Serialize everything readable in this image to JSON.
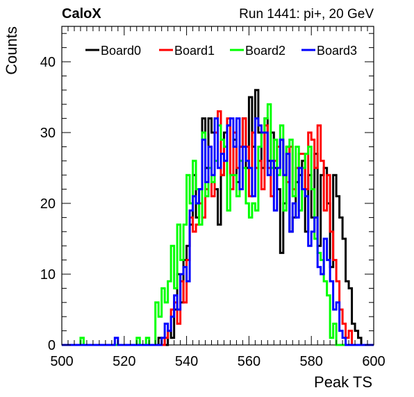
{
  "header": {
    "experiment": "CaloX",
    "run_info": "Run 1441: pi+, 20 GeV"
  },
  "chart_data": {
    "type": "histogram-step",
    "title": "",
    "xlabel": "Peak TS",
    "ylabel": "Counts",
    "xlim": [
      500,
      600
    ],
    "ylim": [
      0,
      45
    ],
    "x_ticks": [
      500,
      520,
      540,
      560,
      580,
      600
    ],
    "y_ticks": [
      0,
      10,
      20,
      30,
      40
    ],
    "bin_width": 1,
    "x_start": 500,
    "legend_placement": "top",
    "grid": false,
    "series": [
      {
        "name": "Board0",
        "color": "#000000",
        "values": [
          0,
          0,
          0,
          0,
          0,
          0,
          0,
          0,
          0,
          0,
          0,
          0,
          0,
          0,
          0,
          0,
          0,
          0,
          0,
          0,
          0,
          0,
          0,
          0,
          0,
          0,
          0,
          0,
          0,
          0,
          0,
          1,
          0,
          0,
          2,
          1,
          5,
          10,
          6,
          12,
          14,
          17,
          24,
          18,
          22,
          32,
          25,
          32,
          30,
          22,
          17,
          24,
          30,
          31,
          24,
          29,
          23,
          28,
          32,
          25,
          35,
          28,
          36,
          30,
          25,
          32,
          26,
          30,
          25,
          22,
          13,
          20,
          28,
          16,
          18,
          23,
          24,
          26,
          16,
          24,
          18,
          27,
          14,
          24,
          25,
          20,
          11,
          24,
          21,
          18,
          15,
          9,
          8,
          3,
          2,
          1,
          0,
          0,
          0,
          0
        ]
      },
      {
        "name": "Board1",
        "color": "#ff0000",
        "values": [
          0,
          0,
          0,
          0,
          0,
          0,
          0,
          0,
          0,
          0,
          0,
          0,
          0,
          0,
          0,
          0,
          0,
          0,
          0,
          0,
          0,
          0,
          0,
          0,
          0,
          0,
          0,
          0,
          0,
          0,
          0,
          0,
          0,
          1,
          2,
          5,
          6,
          3,
          9,
          6,
          12,
          18,
          16,
          17,
          20,
          18,
          22,
          28,
          21,
          30,
          33,
          24,
          28,
          32,
          22,
          30,
          25,
          28,
          32,
          28,
          21,
          30,
          25,
          26,
          22,
          31,
          25,
          21,
          26,
          28,
          29,
          24,
          23,
          28,
          22,
          25,
          27,
          27,
          22,
          30,
          29,
          25,
          31,
          26,
          19,
          24,
          16,
          12,
          9,
          5,
          3,
          1,
          2,
          0,
          0,
          0,
          0,
          0,
          0,
          0
        ]
      },
      {
        "name": "Board2",
        "color": "#00ff00",
        "values": [
          0,
          0,
          0,
          0,
          0,
          0,
          1,
          0,
          0,
          0,
          0,
          0,
          0,
          0,
          0,
          0,
          0,
          0,
          0,
          0,
          0,
          0,
          0,
          0,
          1,
          0,
          0,
          1,
          0,
          0,
          6,
          4,
          8,
          6,
          9,
          14,
          8,
          17,
          12,
          17,
          24,
          20,
          26,
          22,
          17,
          30,
          21,
          25,
          23,
          26,
          31,
          29,
          28,
          19,
          24,
          24,
          21,
          26,
          25,
          20,
          18,
          20,
          19,
          28,
          30,
          32,
          34,
          25,
          29,
          24,
          31,
          19,
          28,
          29,
          21,
          28,
          19,
          25,
          27,
          28,
          22,
          15,
          13,
          12,
          9,
          7,
          1,
          3,
          0,
          0,
          0,
          0,
          0,
          0,
          0,
          0,
          0,
          0,
          0,
          0
        ]
      },
      {
        "name": "Board3",
        "color": "#0000ff",
        "values": [
          0,
          0,
          0,
          0,
          0,
          0,
          0,
          0,
          0,
          0,
          0,
          0,
          0,
          0,
          0,
          0,
          0,
          1,
          0,
          0,
          0,
          0,
          0,
          0,
          0,
          0,
          0,
          0,
          0,
          0,
          0,
          0,
          1,
          3,
          2,
          4,
          7,
          5,
          10,
          11,
          9,
          19,
          21,
          20,
          22,
          29,
          23,
          28,
          24,
          32,
          25,
          27,
          26,
          31,
          32,
          28,
          32,
          22,
          28,
          26,
          25,
          21,
          32,
          31,
          30,
          30,
          24,
          26,
          19,
          25,
          29,
          24,
          27,
          16,
          20,
          18,
          25,
          22,
          21,
          14,
          16,
          18,
          11,
          10,
          15,
          12,
          9,
          5,
          6,
          2,
          1,
          0,
          0,
          0,
          0,
          0,
          0,
          0,
          0,
          0
        ]
      }
    ]
  }
}
